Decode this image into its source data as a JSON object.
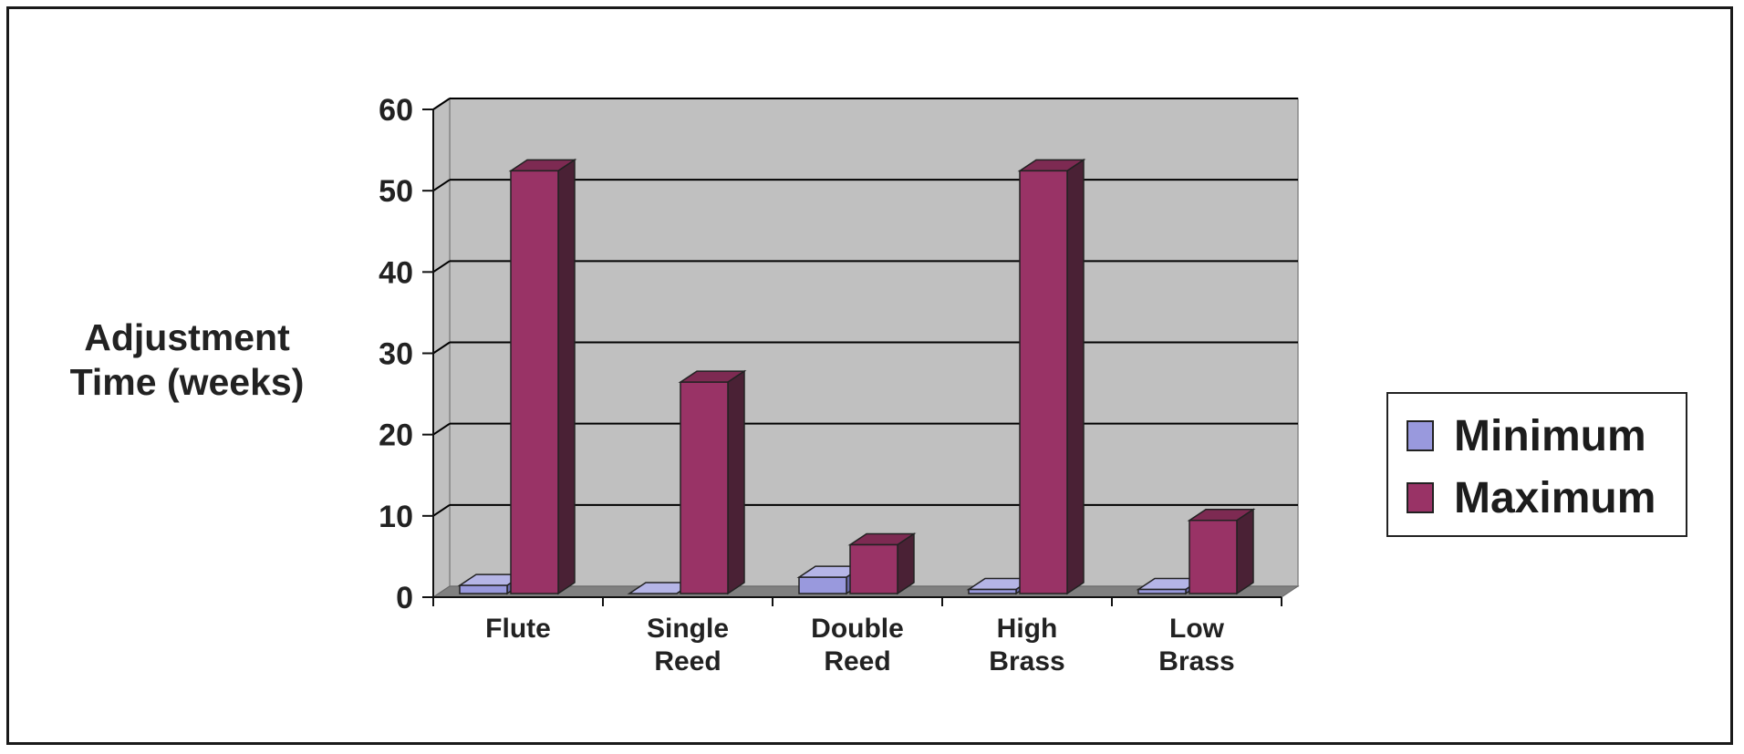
{
  "chart_data": {
    "type": "bar",
    "title": "",
    "xlabel": "",
    "ylabel": "Adjustment Time (weeks)",
    "categories": [
      [
        "Flute"
      ],
      [
        "Single",
        "Reed"
      ],
      [
        "Double",
        "Reed"
      ],
      [
        "High",
        "Brass"
      ],
      [
        "Low",
        "Brass"
      ]
    ],
    "series": [
      {
        "name": "Minimum",
        "values": [
          1,
          0,
          2,
          0.5,
          0.5
        ],
        "color": "#9999dd"
      },
      {
        "name": "Maximum",
        "values": [
          52,
          26,
          6,
          52,
          9
        ],
        "color": "#993366"
      }
    ],
    "ylim": [
      0,
      60
    ],
    "yticks": [
      "0",
      "10",
      "20",
      "30",
      "40",
      "50",
      "60"
    ],
    "grid": true,
    "legend_position": "right",
    "style": "3d-clustered-column"
  },
  "colors": {
    "wall": "#c0c0c0",
    "floor": "#808080",
    "gridline": "#000000",
    "minimum_side": "#6b6ba8",
    "maximum_side": "#4a2135"
  }
}
